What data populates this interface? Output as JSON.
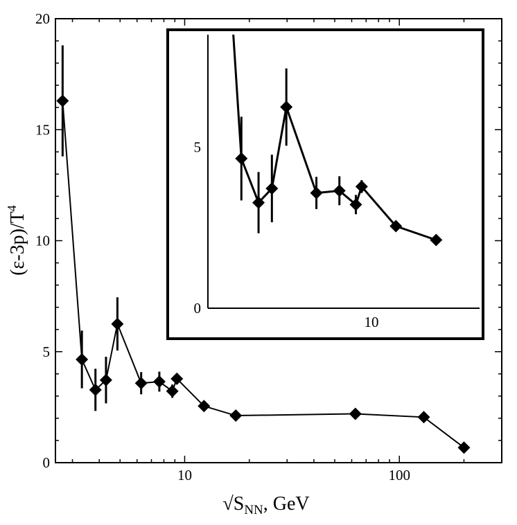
{
  "chart_data": [
    {
      "type": "line",
      "panel": "main",
      "xscale": "log",
      "xlim": [
        2.5,
        300
      ],
      "ylim": [
        0,
        20
      ],
      "ylabel": "(ε-3p)/T",
      "ylabel_sup": "4",
      "xlabel_prefix": "√S",
      "xlabel_sub": "NN",
      "xlabel_suffix": ", GeV",
      "xticks": [
        {
          "value": 10,
          "label": "10"
        },
        {
          "value": 100,
          "label": "100"
        }
      ],
      "yticks": [
        {
          "value": 0,
          "label": "0"
        },
        {
          "value": 5,
          "label": "5"
        },
        {
          "value": 10,
          "label": "10"
        },
        {
          "value": 15,
          "label": "15"
        },
        {
          "value": 20,
          "label": "20"
        }
      ],
      "marker": "diamond",
      "color": "#000000",
      "points": [
        {
          "x": 2.7,
          "y": 16.3,
          "err": 2.5
        },
        {
          "x": 3.32,
          "y": 4.65,
          "err": 1.3
        },
        {
          "x": 3.84,
          "y": 3.28,
          "err": 0.95
        },
        {
          "x": 4.3,
          "y": 3.72,
          "err": 1.05
        },
        {
          "x": 4.86,
          "y": 6.25,
          "err": 1.2
        },
        {
          "x": 6.27,
          "y": 3.58,
          "err": 0.5
        },
        {
          "x": 7.62,
          "y": 3.65,
          "err": 0.45
        },
        {
          "x": 8.76,
          "y": 3.22,
          "err": 0.3
        },
        {
          "x": 9.2,
          "y": 3.78,
          "err": 0.2
        },
        {
          "x": 12.3,
          "y": 2.55,
          "err": 0.15
        },
        {
          "x": 17.3,
          "y": 2.12,
          "err": 0.1
        },
        {
          "x": 62.4,
          "y": 2.2,
          "err": 0.1
        },
        {
          "x": 130,
          "y": 2.05,
          "err": 0.1
        },
        {
          "x": 200,
          "y": 0.68,
          "err": 0.1
        }
      ]
    },
    {
      "type": "line",
      "panel": "inset",
      "xscale": "log",
      "xlim": [
        2.5,
        25
      ],
      "ylim": [
        0,
        8.5
      ],
      "xticks": [
        {
          "value": 10,
          "label": "10"
        }
      ],
      "yticks": [
        {
          "value": 0,
          "label": "0"
        },
        {
          "value": 5,
          "label": "5"
        }
      ],
      "marker": "diamond",
      "color": "#000000",
      "points": [
        {
          "x": 3.32,
          "y": 4.65,
          "err": 1.3
        },
        {
          "x": 3.84,
          "y": 3.28,
          "err": 0.95
        },
        {
          "x": 4.3,
          "y": 3.72,
          "err": 1.05
        },
        {
          "x": 4.86,
          "y": 6.25,
          "err": 1.2
        },
        {
          "x": 6.27,
          "y": 3.58,
          "err": 0.5
        },
        {
          "x": 7.62,
          "y": 3.65,
          "err": 0.45
        },
        {
          "x": 8.76,
          "y": 3.22,
          "err": 0.3
        },
        {
          "x": 9.2,
          "y": 3.78,
          "err": 0.2
        },
        {
          "x": 12.3,
          "y": 2.55,
          "err": 0.15
        },
        {
          "x": 17.3,
          "y": 2.12,
          "err": 0.1
        }
      ],
      "offscale_start": {
        "x": 2.7,
        "y": 16.3
      }
    }
  ]
}
